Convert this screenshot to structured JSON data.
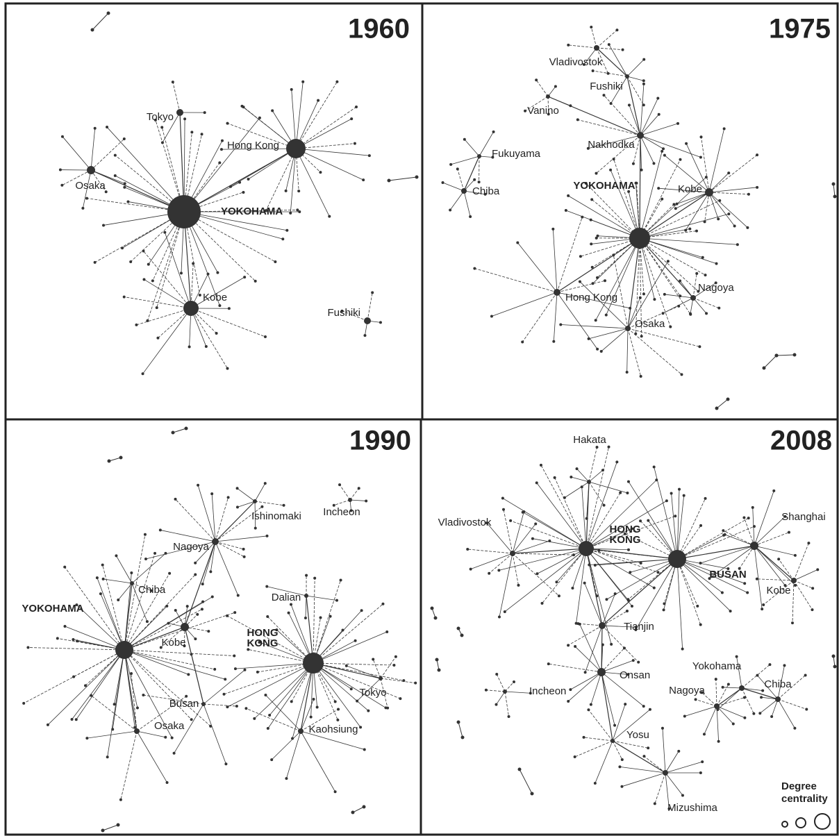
{
  "panels": [
    {
      "year": "1960",
      "nodes": [
        {
          "label": "YOKOHAMA"
        },
        {
          "label": "Tokyo"
        },
        {
          "label": "Hong Kong"
        },
        {
          "label": "Osaka"
        },
        {
          "label": "Kobe"
        },
        {
          "label": "Fushiki"
        }
      ]
    },
    {
      "year": "1975",
      "nodes": [
        {
          "label": "YOKOHAMA"
        },
        {
          "label": "Nakhodka"
        },
        {
          "label": "Fushiki"
        },
        {
          "label": "Vladivostok"
        },
        {
          "label": "Vanino"
        },
        {
          "label": "Fukuyama"
        },
        {
          "label": "Chiba"
        },
        {
          "label": "Kobe"
        },
        {
          "label": "Hong Kong"
        },
        {
          "label": "Nagoya"
        },
        {
          "label": "Osaka"
        }
      ]
    },
    {
      "year": "1990",
      "nodes": [
        {
          "label": "YOKOHAMA"
        },
        {
          "label": "Chiba"
        },
        {
          "label": "Kobe"
        },
        {
          "label": "Nagoya"
        },
        {
          "label": "Ishinomaki"
        },
        {
          "label": "Incheon"
        },
        {
          "label": "Dalian"
        },
        {
          "label_lines": [
            "HONG",
            "KONG"
          ]
        },
        {
          "label": "Tokyo"
        },
        {
          "label": "Kaohsiung"
        },
        {
          "label": "Busan"
        },
        {
          "label": "Osaka"
        }
      ]
    },
    {
      "year": "2008",
      "nodes": [
        {
          "label": "Hakata"
        },
        {
          "label": "Vladivostok"
        },
        {
          "label_lines": [
            "HONG",
            "KONG"
          ]
        },
        {
          "label": "BUSAN"
        },
        {
          "label": "Shanghai"
        },
        {
          "label": "Kobe"
        },
        {
          "label": "Tianjin"
        },
        {
          "label": "Onsan"
        },
        {
          "label": "Incheon"
        },
        {
          "label": "Yokohama"
        },
        {
          "label": "Chiba"
        },
        {
          "label": "Nagoya"
        },
        {
          "label": "Yosu"
        },
        {
          "label": "Mizushima"
        }
      ]
    }
  ],
  "legend": {
    "title_lines": [
      "Degree",
      "centrality"
    ]
  }
}
